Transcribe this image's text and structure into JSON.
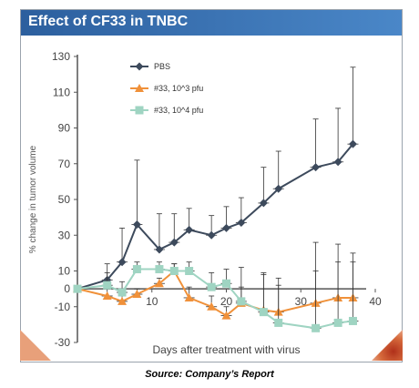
{
  "header": {
    "title": "Effect of CF33 in TNBC"
  },
  "footer": {
    "source": "Source: Company’s Report"
  },
  "colors": {
    "title_bar": "#2c5f9e",
    "pbs": "#3d4a5c",
    "low": "#f0913a",
    "high": "#9fd4c2",
    "axis": "#555555"
  },
  "chart_data": {
    "type": "line",
    "title": "",
    "xlabel": "Days after treatment with virus",
    "ylabel": "% change in tumor volume",
    "xlim": [
      0,
      40
    ],
    "ylim": [
      -30,
      130
    ],
    "xticks": [
      10,
      20,
      30,
      40
    ],
    "xtick_labels": [
      "10",
      "20",
      "30",
      "40"
    ],
    "yticks": [
      -30,
      -10,
      0,
      10,
      30,
      50,
      70,
      90,
      110,
      130
    ],
    "ytick_labels": [
      "-30",
      "-10",
      "0",
      "10",
      "30",
      "50",
      "70",
      "90",
      "110",
      "130"
    ],
    "legend_position": "top-left",
    "series": [
      {
        "name": "PBS",
        "color": "#3d4a5c",
        "marker": "diamond",
        "x": [
          0,
          4,
          6,
          8,
          11,
          13,
          15,
          18,
          20,
          22,
          25,
          27,
          32,
          35,
          37
        ],
        "y": [
          0,
          5,
          15,
          36,
          22,
          26,
          33,
          30,
          34,
          37,
          48,
          56,
          68,
          71,
          81
        ],
        "err": [
          0,
          9,
          19,
          36,
          20,
          16,
          12,
          11,
          12,
          14,
          20,
          21,
          27,
          30,
          43
        ]
      },
      {
        "name": "#33, 10^3 pfu",
        "color": "#f0913a",
        "marker": "triangle",
        "x": [
          0,
          4,
          6,
          8,
          11,
          13,
          15,
          18,
          20,
          22,
          25,
          27,
          32,
          35,
          37
        ],
        "y": [
          0,
          -4,
          -7,
          -3,
          3,
          10,
          -5,
          -10,
          -15,
          -8,
          -12,
          -13,
          -8,
          -5,
          -5
        ],
        "err": [
          0,
          4,
          4,
          3,
          3,
          4,
          6,
          6,
          5,
          20,
          20,
          15,
          34,
          30,
          25
        ]
      },
      {
        "name": "#33, 10^4 pfu",
        "color": "#9fd4c2",
        "marker": "square",
        "x": [
          0,
          4,
          6,
          8,
          11,
          13,
          15,
          18,
          20,
          22,
          25,
          27,
          32,
          35,
          37
        ],
        "y": [
          0,
          2,
          -2,
          11,
          11,
          10,
          10,
          1,
          3,
          -7,
          -13,
          -19,
          -22,
          -19,
          -18
        ],
        "err": [
          0,
          7,
          6,
          4,
          4,
          4,
          5,
          8,
          8,
          8,
          22,
          25,
          32,
          34,
          33
        ]
      }
    ]
  }
}
